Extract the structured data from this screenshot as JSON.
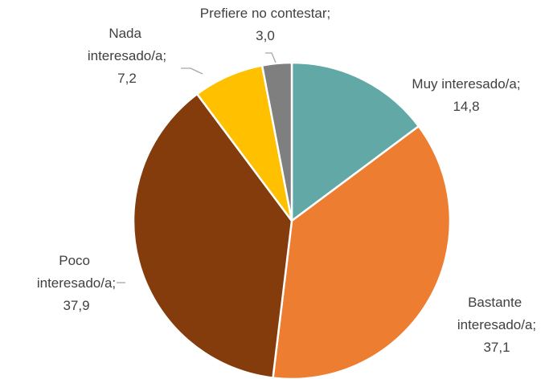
{
  "chart_data": {
    "type": "pie",
    "categories": [
      "Muy interesado/a;",
      "Bastante interesado/a;",
      "Poco interesado/a;",
      "Nada interesado/a;",
      "Prefiere no contestar;"
    ],
    "values": [
      14.8,
      37.1,
      37.9,
      7.2,
      3.0
    ],
    "value_labels": [
      "14,8",
      "37,1",
      "37,9",
      "7,2",
      "3,0"
    ],
    "colors": [
      "#62a8a6",
      "#ed7d31",
      "#843c0c",
      "#ffc000",
      "#7f7f7f"
    ]
  }
}
